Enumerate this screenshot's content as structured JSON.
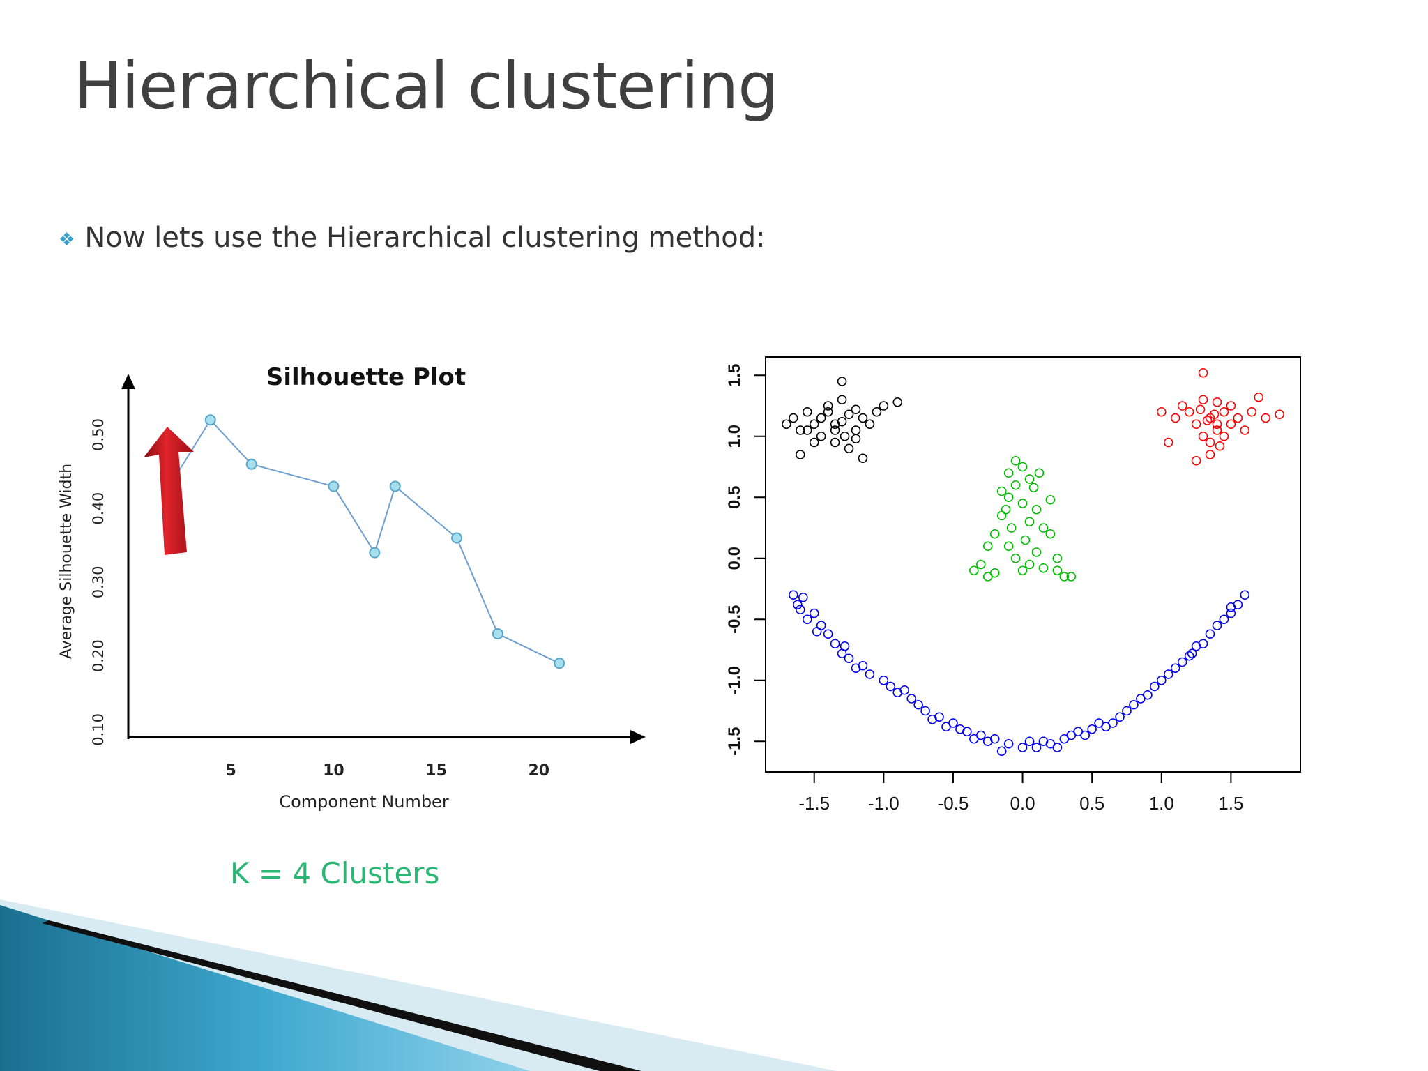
{
  "slide": {
    "title": "Hierarchical clustering",
    "bullet_icon": "diamond-bullet-icon",
    "bullet_text": "Now lets use the Hierarchical clustering method:",
    "caption": "K = 4 Clusters"
  },
  "colors": {
    "line": "#6f9fcf",
    "marker_fill": "#a6e0ef",
    "marker_stroke": "#5aa6c8",
    "arrow": "#c8141e",
    "caption": "#2bb673",
    "cluster_black": "#000000",
    "cluster_red": "#ff0000",
    "cluster_green": "#00bb00",
    "cluster_blue": "#0000ee"
  },
  "chart_data": [
    {
      "type": "line",
      "title": "Silhouette Plot",
      "xlabel": "Component Number",
      "ylabel": "Average Silhouette Width",
      "x": [
        2,
        4,
        6,
        10,
        12,
        13,
        16,
        18,
        21
      ],
      "y": [
        0.43,
        0.52,
        0.46,
        0.43,
        0.34,
        0.43,
        0.36,
        0.23,
        0.19
      ],
      "xticks": [
        5,
        10,
        15,
        20
      ],
      "yticks": [
        0.1,
        0.2,
        0.3,
        0.4,
        0.5
      ],
      "ytick_labels": [
        "0.10",
        "0.20",
        "0.30",
        "0.40",
        "0.50"
      ],
      "xlim": [
        0,
        25
      ],
      "ylim": [
        0.09,
        0.56
      ],
      "annotation": "red arrow pointing at the maximum (x=4)"
    },
    {
      "type": "scatter",
      "title": "",
      "xlim": [
        -1.85,
        2.0
      ],
      "ylim": [
        -1.75,
        1.65
      ],
      "xticks": [
        -1.5,
        -1.0,
        -0.5,
        0.0,
        0.5,
        1.0,
        1.5
      ],
      "xtick_labels": [
        "-1.5",
        "-1.0",
        "-0.5",
        "0.0",
        "0.5",
        "1.0",
        "1.5"
      ],
      "yticks": [
        -1.5,
        -1.0,
        -0.5,
        0.0,
        0.5,
        1.0,
        1.5
      ],
      "ytick_labels": [
        "-1.5",
        "-1.0",
        "-0.5",
        "0.0",
        "0.5",
        "1.0",
        "1.5"
      ],
      "series": [
        {
          "color": "black",
          "points": [
            [
              -1.7,
              1.1
            ],
            [
              -1.65,
              1.15
            ],
            [
              -1.6,
              1.05
            ],
            [
              -1.55,
              1.2
            ],
            [
              -1.5,
              1.1
            ],
            [
              -1.45,
              1.0
            ],
            [
              -1.4,
              1.25
            ],
            [
              -1.35,
              1.1
            ],
            [
              -1.3,
              1.3
            ],
            [
              -1.28,
              1.0
            ],
            [
              -1.25,
              1.18
            ],
            [
              -1.2,
              1.05
            ],
            [
              -1.15,
              1.15
            ],
            [
              -1.1,
              1.1
            ],
            [
              -1.05,
              1.2
            ],
            [
              -1.35,
              0.95
            ],
            [
              -1.25,
              0.9
            ],
            [
              -1.5,
              0.95
            ],
            [
              -1.6,
              0.85
            ],
            [
              -0.9,
              1.28
            ],
            [
              -1.3,
              1.45
            ],
            [
              -1.4,
              1.2
            ],
            [
              -1.45,
              1.15
            ],
            [
              -1.2,
              1.22
            ],
            [
              -1.15,
              0.82
            ],
            [
              -1.55,
              1.05
            ],
            [
              -1.0,
              1.25
            ],
            [
              -1.35,
              1.05
            ],
            [
              -1.3,
              1.12
            ],
            [
              -1.2,
              0.98
            ]
          ]
        },
        {
          "color": "red",
          "points": [
            [
              1.2,
              1.2
            ],
            [
              1.25,
              1.1
            ],
            [
              1.3,
              1.3
            ],
            [
              1.35,
              1.15
            ],
            [
              1.4,
              1.05
            ],
            [
              1.45,
              1.2
            ],
            [
              1.5,
              1.1
            ],
            [
              1.35,
              0.95
            ],
            [
              1.3,
              1.0
            ],
            [
              1.4,
              1.28
            ],
            [
              1.55,
              1.15
            ],
            [
              1.6,
              1.05
            ],
            [
              1.65,
              1.2
            ],
            [
              1.75,
              1.15
            ],
            [
              1.85,
              1.18
            ],
            [
              1.3,
              1.52
            ],
            [
              1.0,
              1.2
            ],
            [
              1.1,
              1.15
            ],
            [
              1.35,
              0.85
            ],
            [
              1.25,
              0.8
            ],
            [
              1.05,
              0.95
            ],
            [
              1.4,
              1.1
            ],
            [
              1.33,
              1.13
            ],
            [
              1.38,
              1.18
            ],
            [
              1.28,
              1.22
            ],
            [
              1.45,
              1.0
            ],
            [
              1.7,
              1.32
            ],
            [
              1.15,
              1.25
            ],
            [
              1.5,
              1.25
            ],
            [
              1.42,
              0.92
            ]
          ]
        },
        {
          "color": "green",
          "points": [
            [
              -0.05,
              0.8
            ],
            [
              0.0,
              0.75
            ],
            [
              -0.1,
              0.7
            ],
            [
              0.05,
              0.65
            ],
            [
              -0.05,
              0.6
            ],
            [
              0.08,
              0.58
            ],
            [
              -0.1,
              0.5
            ],
            [
              0.0,
              0.45
            ],
            [
              0.1,
              0.4
            ],
            [
              -0.15,
              0.35
            ],
            [
              0.05,
              0.3
            ],
            [
              0.15,
              0.25
            ],
            [
              -0.2,
              0.2
            ],
            [
              0.2,
              0.2
            ],
            [
              -0.25,
              0.1
            ],
            [
              -0.1,
              0.1
            ],
            [
              0.1,
              0.05
            ],
            [
              0.25,
              0.0
            ],
            [
              -0.3,
              -0.05
            ],
            [
              0.0,
              -0.1
            ],
            [
              0.3,
              -0.15
            ],
            [
              -0.35,
              -0.1
            ],
            [
              0.35,
              -0.15
            ],
            [
              -0.2,
              -0.12
            ],
            [
              0.15,
              -0.08
            ],
            [
              -0.05,
              0.0
            ],
            [
              0.05,
              -0.05
            ],
            [
              -0.15,
              0.55
            ],
            [
              0.12,
              0.7
            ],
            [
              -0.08,
              0.25
            ],
            [
              0.2,
              0.48
            ],
            [
              0.25,
              -0.1
            ],
            [
              -0.25,
              -0.15
            ],
            [
              0.02,
              0.15
            ],
            [
              -0.12,
              0.4
            ]
          ]
        },
        {
          "color": "blue",
          "points": [
            [
              -1.65,
              -0.3
            ],
            [
              -1.62,
              -0.38
            ],
            [
              -1.58,
              -0.32
            ],
            [
              -1.55,
              -0.5
            ],
            [
              -1.5,
              -0.45
            ],
            [
              -1.45,
              -0.55
            ],
            [
              -1.4,
              -0.62
            ],
            [
              -1.35,
              -0.7
            ],
            [
              -1.3,
              -0.78
            ],
            [
              -1.25,
              -0.82
            ],
            [
              -1.2,
              -0.9
            ],
            [
              -1.15,
              -0.88
            ],
            [
              -1.1,
              -0.95
            ],
            [
              -1.0,
              -1.0
            ],
            [
              -0.95,
              -1.05
            ],
            [
              -0.9,
              -1.1
            ],
            [
              -0.85,
              -1.08
            ],
            [
              -0.8,
              -1.15
            ],
            [
              -0.75,
              -1.2
            ],
            [
              -0.7,
              -1.25
            ],
            [
              -0.6,
              -1.3
            ],
            [
              -0.5,
              -1.35
            ],
            [
              -0.45,
              -1.4
            ],
            [
              -0.4,
              -1.42
            ],
            [
              -0.3,
              -1.45
            ],
            [
              -0.25,
              -1.5
            ],
            [
              -0.2,
              -1.48
            ],
            [
              -0.1,
              -1.52
            ],
            [
              0.0,
              -1.55
            ],
            [
              0.05,
              -1.5
            ],
            [
              0.1,
              -1.55
            ],
            [
              0.2,
              -1.52
            ],
            [
              0.3,
              -1.48
            ],
            [
              0.35,
              -1.45
            ],
            [
              0.4,
              -1.42
            ],
            [
              0.5,
              -1.4
            ],
            [
              0.55,
              -1.35
            ],
            [
              0.6,
              -1.38
            ],
            [
              0.7,
              -1.3
            ],
            [
              0.75,
              -1.25
            ],
            [
              0.8,
              -1.2
            ],
            [
              0.85,
              -1.15
            ],
            [
              0.9,
              -1.12
            ],
            [
              0.95,
              -1.05
            ],
            [
              1.0,
              -1.0
            ],
            [
              1.05,
              -0.95
            ],
            [
              1.1,
              -0.9
            ],
            [
              1.15,
              -0.85
            ],
            [
              1.2,
              -0.8
            ],
            [
              1.25,
              -0.72
            ],
            [
              1.3,
              -0.7
            ],
            [
              1.35,
              -0.62
            ],
            [
              1.4,
              -0.55
            ],
            [
              1.45,
              -0.5
            ],
            [
              1.5,
              -0.45
            ],
            [
              1.55,
              -0.38
            ],
            [
              1.6,
              -0.3
            ],
            [
              -1.48,
              -0.6
            ],
            [
              -0.65,
              -1.32
            ],
            [
              -0.15,
              -1.58
            ],
            [
              0.25,
              -1.55
            ],
            [
              0.65,
              -1.35
            ],
            [
              1.22,
              -0.78
            ],
            [
              -1.28,
              -0.72
            ],
            [
              0.45,
              -1.45
            ],
            [
              -0.55,
              -1.38
            ],
            [
              1.5,
              -0.4
            ],
            [
              -1.6,
              -0.42
            ],
            [
              0.15,
              -1.5
            ],
            [
              -0.35,
              -1.48
            ]
          ]
        }
      ]
    }
  ]
}
